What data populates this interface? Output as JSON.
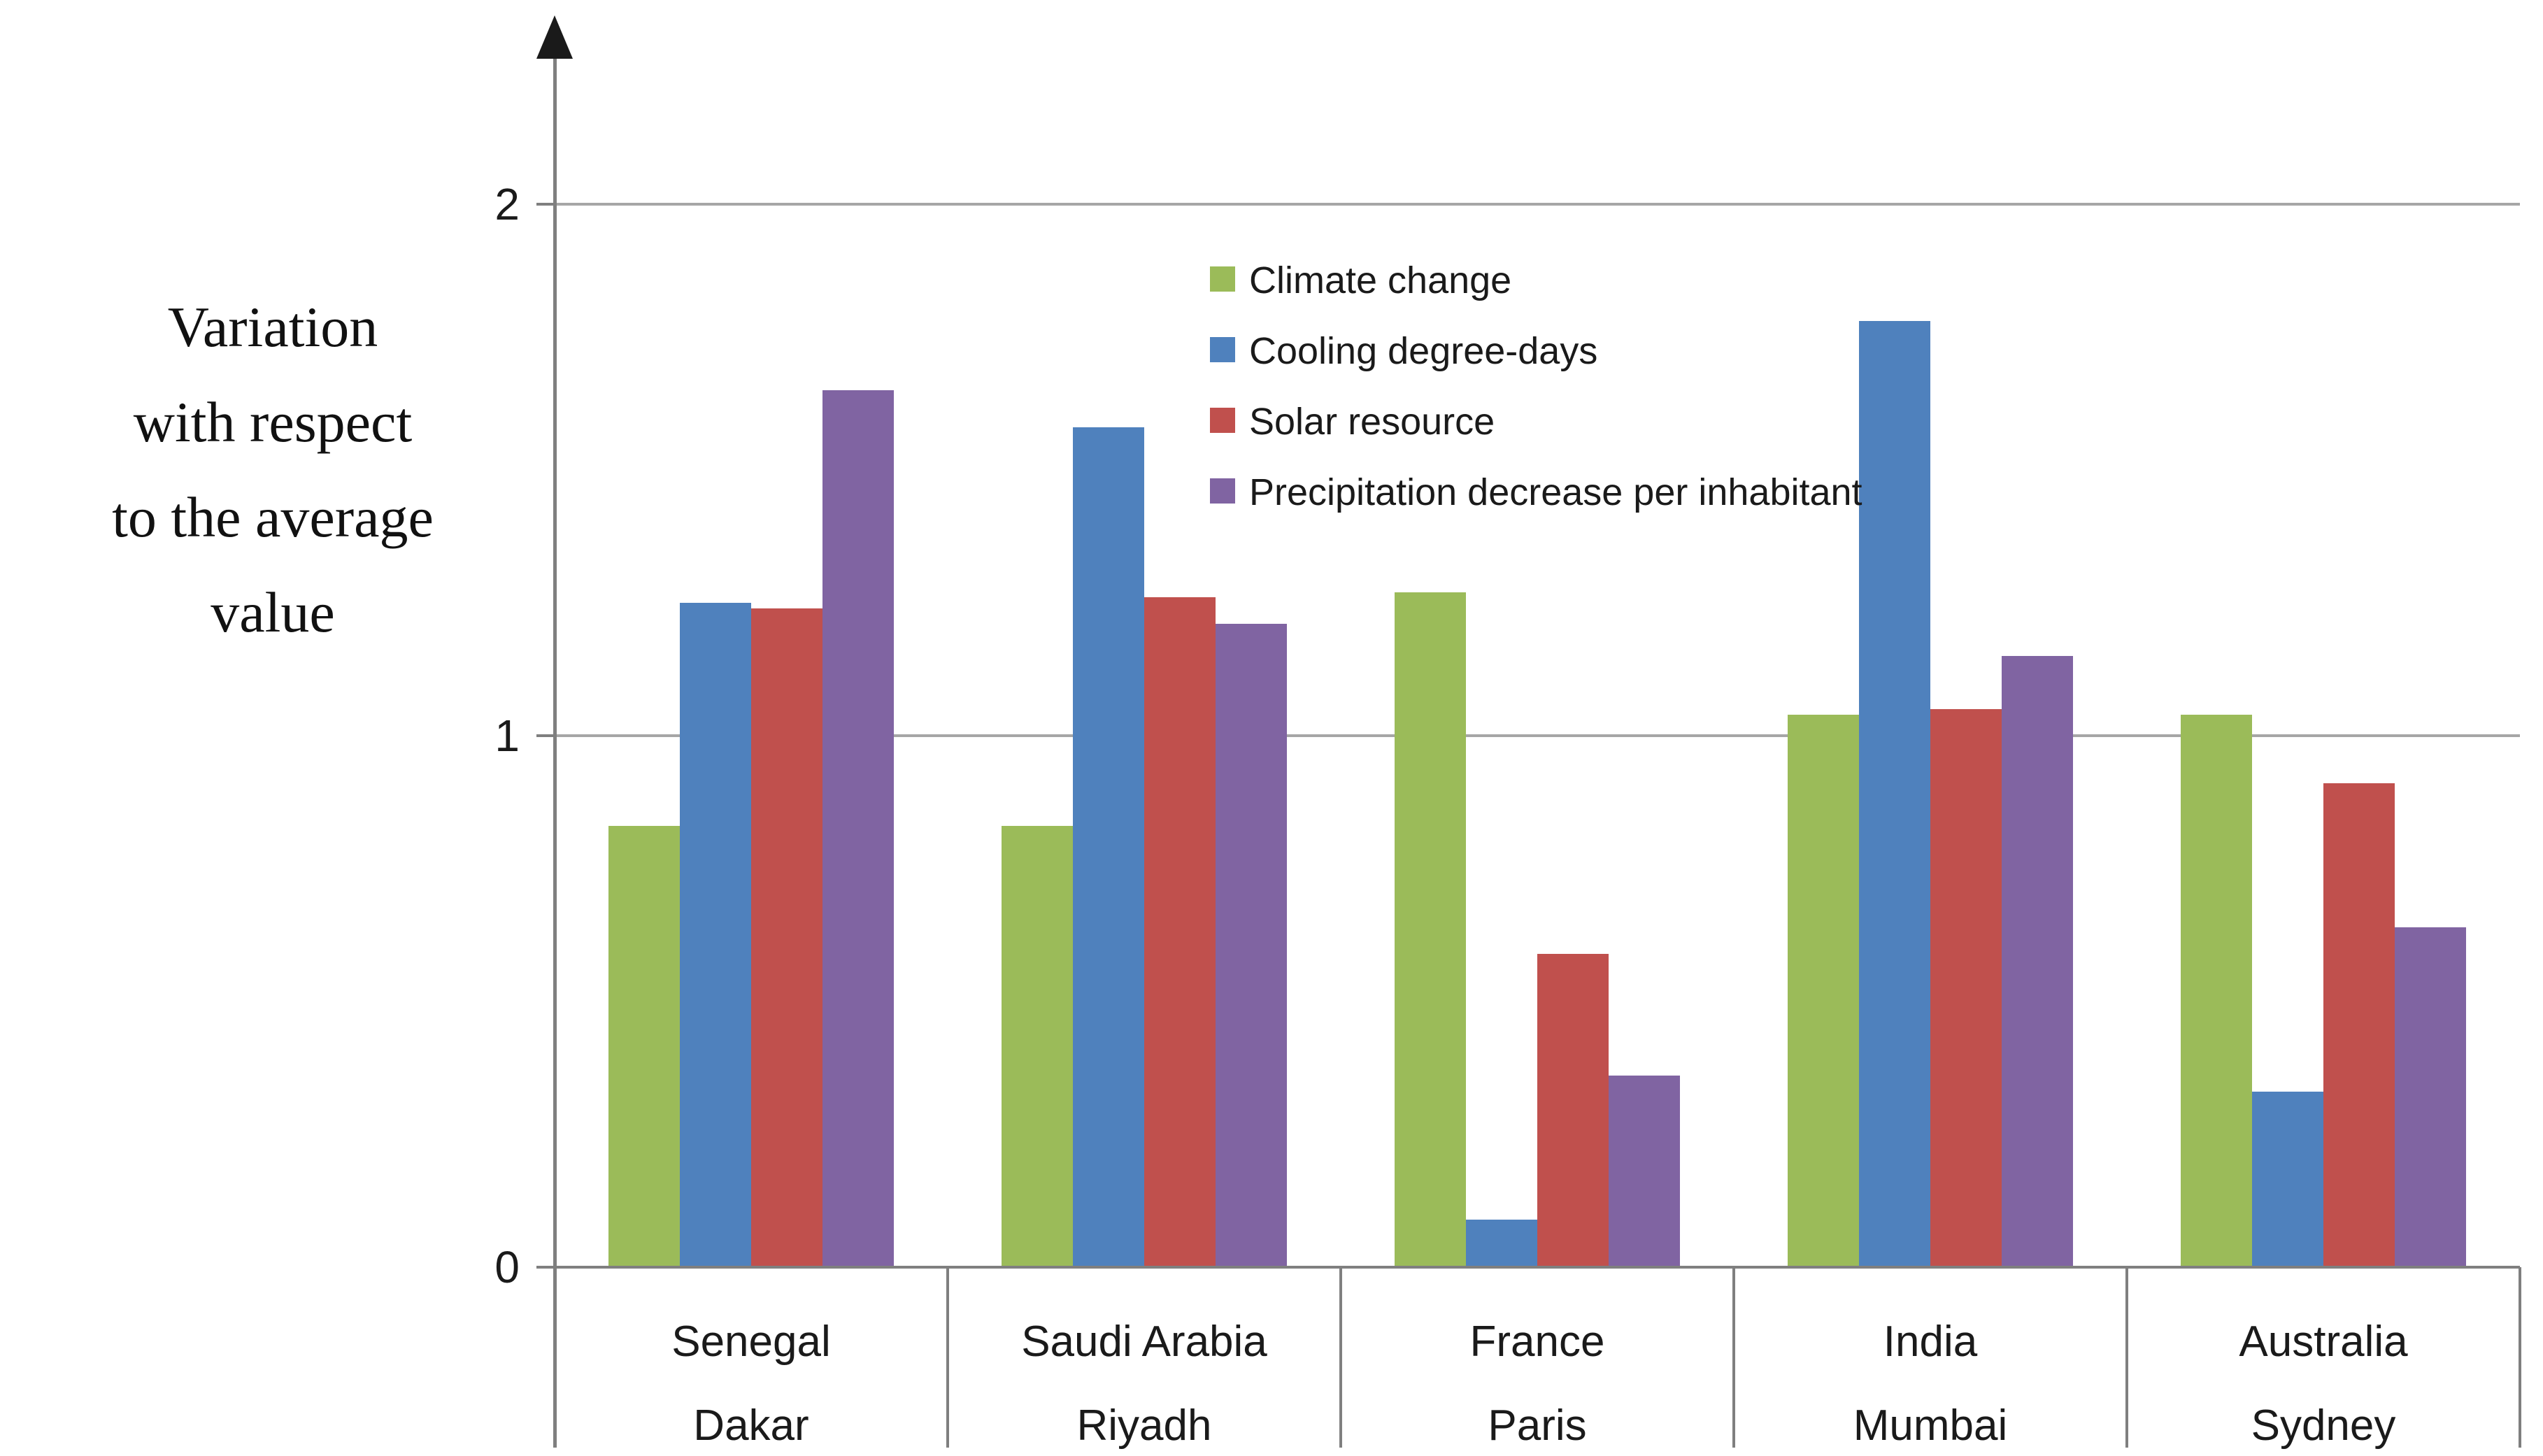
{
  "page": {
    "background": "#ffffff"
  },
  "chart_data": {
    "type": "bar",
    "title": "",
    "ylabel": "Variation with respect to the average value",
    "ylabel_lines": [
      "Variation",
      "with respect",
      "to the average",
      "value"
    ],
    "xlabel": "",
    "categories": [
      {
        "country": "Senegal",
        "city": "Dakar"
      },
      {
        "country": "Saudi Arabia",
        "city": "Riyadh"
      },
      {
        "country": "France",
        "city": "Paris"
      },
      {
        "country": "India",
        "city": "Mumbai"
      },
      {
        "country": "Australia",
        "city": "Sydney"
      }
    ],
    "series": [
      {
        "name": "Climate change",
        "color": "#9bbb59",
        "values": [
          0.83,
          0.83,
          1.27,
          1.04,
          1.04
        ]
      },
      {
        "name": "Cooling degree-days",
        "color": "#4f81bd",
        "values": [
          1.25,
          1.58,
          0.09,
          1.78,
          0.33
        ]
      },
      {
        "name": "Solar resource",
        "color": "#c0504d",
        "values": [
          1.24,
          1.26,
          0.59,
          1.05,
          0.91
        ]
      },
      {
        "name": "Precipitation decrease per inhabitant",
        "color": "#8064a2",
        "values": [
          1.65,
          1.21,
          0.36,
          1.15,
          0.64
        ]
      }
    ],
    "yticks": [
      "0",
      "1",
      "2"
    ],
    "ylim": [
      0,
      2.3
    ],
    "grid": true,
    "legend_position": "upper-center",
    "axis_color": "#7f7f7f",
    "gridline_color": "#a6a6a6",
    "arrow_color": "#1a1a1a",
    "text_color": "#1a1a1a"
  }
}
